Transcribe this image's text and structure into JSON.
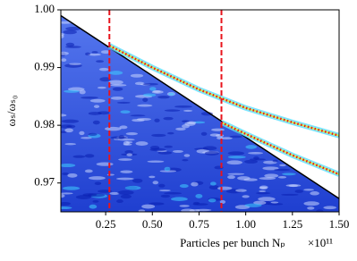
{
  "chart_data": {
    "type": "line",
    "xlabel": "Particles per bunch Nₚ",
    "ylabel": "ωₛ/ωₛ₀",
    "x_offset_label": "×10¹¹",
    "xlim": [
      0.01,
      1.5
    ],
    "ylim": [
      0.965,
      1.0
    ],
    "xticks": [
      0.25,
      {
        "value": 0.5,
        "label": "0.50"
      },
      0.75,
      {
        "value": 1.0,
        "label": "1.00"
      },
      1.25,
      {
        "value": 1.5,
        "label": "1.50"
      }
    ],
    "yticks": [
      0.97,
      0.98,
      0.99,
      {
        "value": 1.0,
        "label": "1.00"
      }
    ],
    "series": [
      {
        "color": "#000000",
        "x": [
          0.01,
          1.5
        ],
        "values": [
          0.999,
          0.9673
        ]
      },
      {
        "color": "#e8141c",
        "x": [
          0.27,
          0.5,
          0.75,
          1.0,
          1.25,
          1.5
        ],
        "values": [
          0.9938,
          0.99,
          0.9862,
          0.983,
          0.9805,
          0.9782
        ]
      },
      {
        "color": "#e8141c",
        "x": [
          0.87,
          1.0,
          1.25,
          1.5
        ],
        "values": [
          0.9805,
          0.9785,
          0.9748,
          0.9715
        ]
      }
    ],
    "vlines": [
      0.27,
      0.87
    ],
    "vline_color": "#e8141c"
  }
}
